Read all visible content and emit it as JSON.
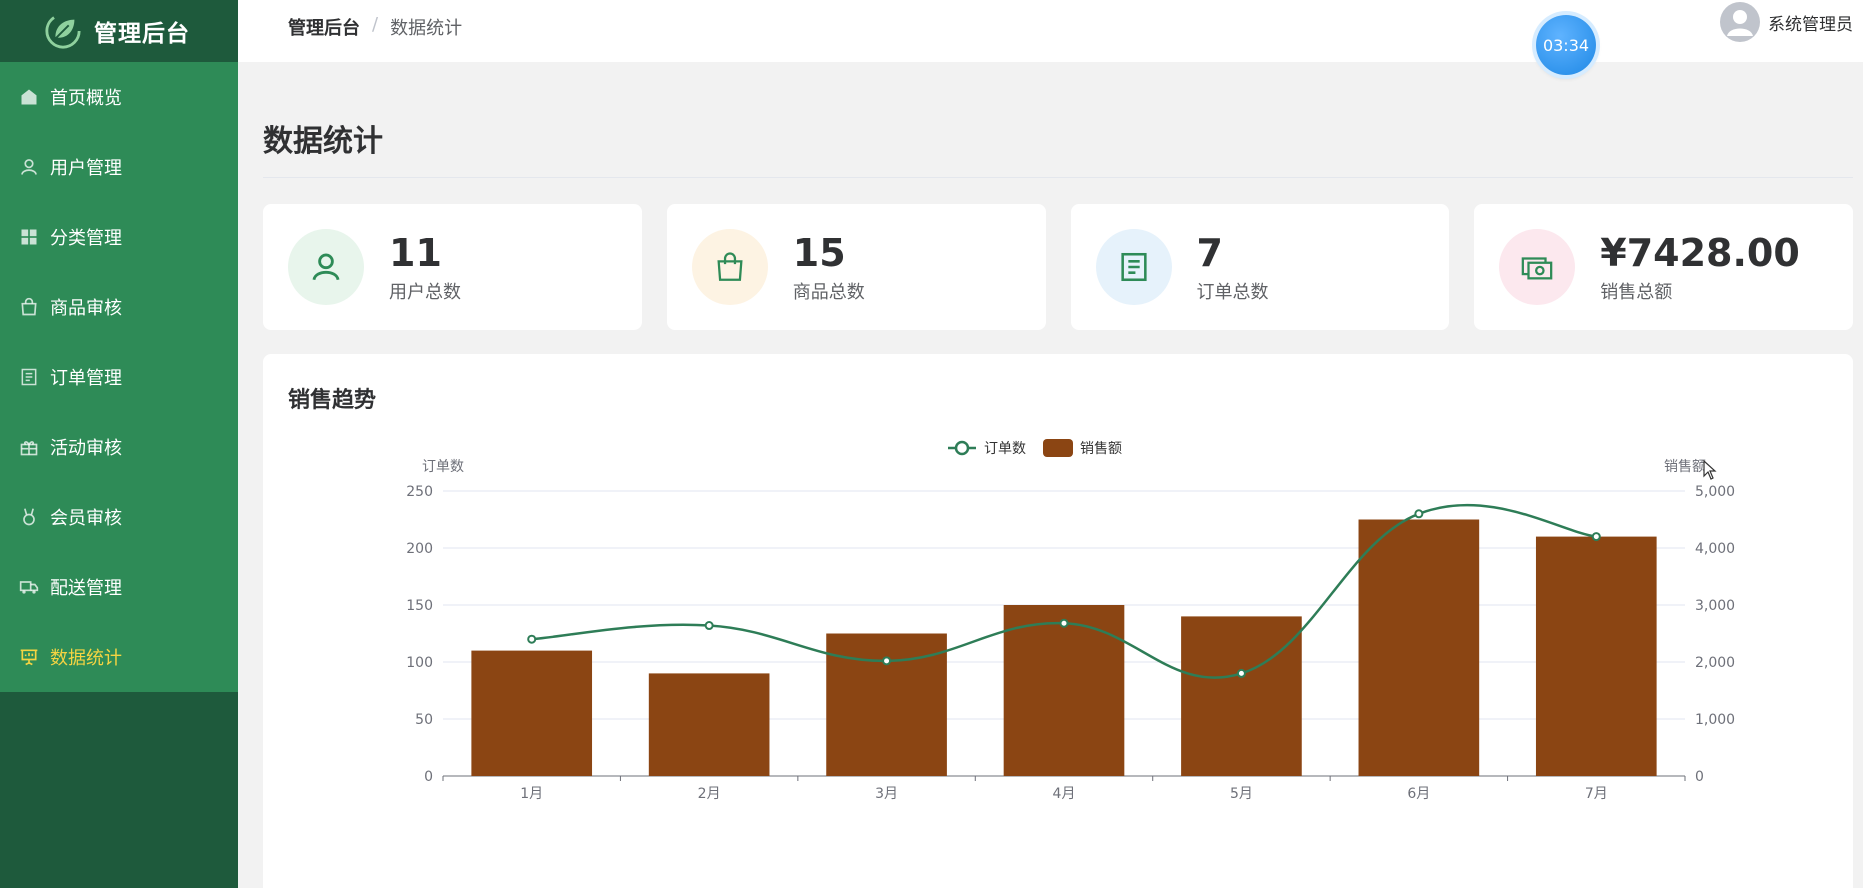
{
  "app": {
    "title": "管理后台"
  },
  "sidebar": {
    "items": [
      {
        "label": "首页概览",
        "icon": "home-icon",
        "active": false
      },
      {
        "label": "用户管理",
        "icon": "user-icon",
        "active": false
      },
      {
        "label": "分类管理",
        "icon": "grid-icon",
        "active": false
      },
      {
        "label": "商品审核",
        "icon": "bag-icon",
        "active": false
      },
      {
        "label": "订单管理",
        "icon": "document-icon",
        "active": false
      },
      {
        "label": "活动审核",
        "icon": "gift-icon",
        "active": false
      },
      {
        "label": "会员审核",
        "icon": "medal-icon",
        "active": false
      },
      {
        "label": "配送管理",
        "icon": "truck-icon",
        "active": false
      },
      {
        "label": "数据统计",
        "icon": "presentation-chart-icon",
        "active": true
      }
    ]
  },
  "header": {
    "breadcrumb_root": "管理后台",
    "breadcrumb_sep": "/",
    "breadcrumb_current": "数据统计",
    "timer": "03:34",
    "user_name": "系统管理员"
  },
  "page": {
    "title": "数据统计"
  },
  "stats": [
    {
      "value": "11",
      "label": "用户总数",
      "icon": "user-icon",
      "bg": "#e8f5ec",
      "color": "#2e8b57"
    },
    {
      "value": "15",
      "label": "商品总数",
      "icon": "shopping-bag-icon",
      "bg": "#fdf3e3",
      "color": "#2e8b57"
    },
    {
      "value": "7",
      "label": "订单总数",
      "icon": "document-icon",
      "bg": "#e6f2fb",
      "color": "#2e8b57"
    },
    {
      "value": "¥7428.00",
      "label": "销售总额",
      "icon": "money-icon",
      "bg": "#fce8ee",
      "color": "#2e8b57"
    }
  ],
  "chart_panel": {
    "title": "销售趋势"
  },
  "chart_data": {
    "type": "bar",
    "categories": [
      "1月",
      "2月",
      "3月",
      "4月",
      "5月",
      "6月",
      "7月"
    ],
    "series": [
      {
        "name": "订单数",
        "type": "line",
        "axis": "left",
        "values": [
          120,
          132,
          101,
          134,
          90,
          230,
          210
        ],
        "color": "#2e7d57"
      },
      {
        "name": "销售额",
        "type": "bar",
        "axis": "right",
        "values": [
          2200,
          1800,
          2500,
          3000,
          2800,
          4500,
          4200
        ],
        "color": "#8b4513"
      }
    ],
    "ylabel_left": "订单数",
    "ylabel_right": "销售额",
    "ylim_left": [
      0,
      250
    ],
    "ylim_right": [
      0,
      5000
    ],
    "yticks_left": [
      "0",
      "50",
      "100",
      "150",
      "200",
      "250"
    ],
    "yticks_right": [
      "0",
      "1,000",
      "2,000",
      "3,000",
      "4,000",
      "5,000"
    ],
    "legend": "top-center",
    "grid": true
  }
}
